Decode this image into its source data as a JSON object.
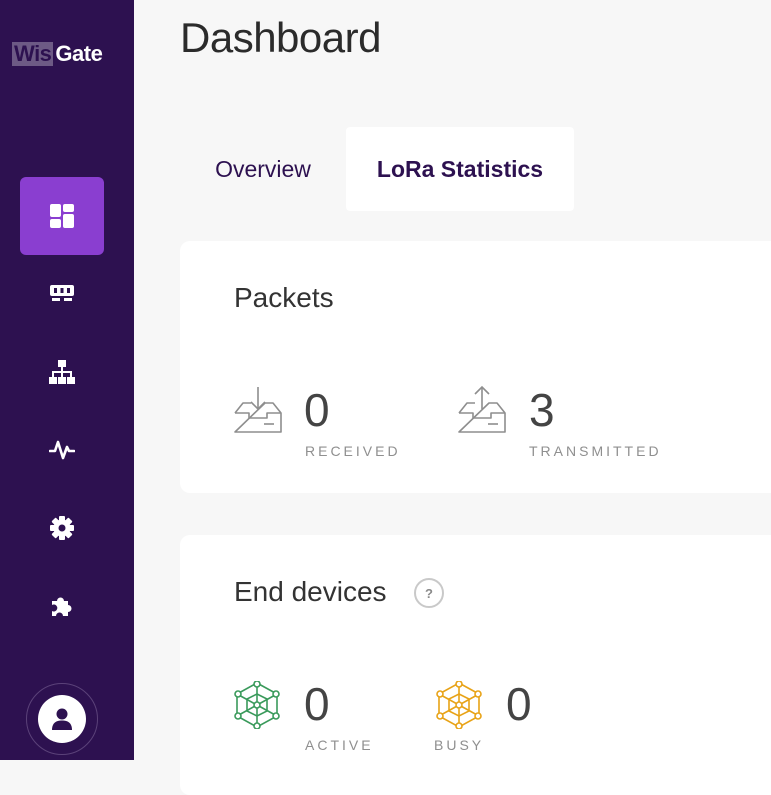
{
  "sidebar": {
    "logo": {
      "part1": "Wis",
      "part2": "Gate"
    },
    "items": [
      {
        "icon": "dashboard-icon",
        "active": true
      },
      {
        "icon": "gateway-icon",
        "active": false
      },
      {
        "icon": "network-icon",
        "active": false
      },
      {
        "icon": "activity-icon",
        "active": false
      },
      {
        "icon": "gear-icon",
        "active": false
      },
      {
        "icon": "puzzle-icon",
        "active": false
      }
    ],
    "user_icon": "user-icon"
  },
  "header": {
    "title": "Dashboard"
  },
  "tabs": [
    {
      "label": "Overview",
      "active": false
    },
    {
      "label": "LoRa Statistics",
      "active": true
    }
  ],
  "packets": {
    "title": "Packets",
    "received": {
      "value": "0",
      "label": "RECEIVED",
      "icon": "inbox-download-icon"
    },
    "transmitted": {
      "value": "3",
      "label": "TRANSMITTED",
      "icon": "inbox-upload-icon"
    }
  },
  "end_devices": {
    "title": "End devices",
    "help_glyph": "?",
    "active": {
      "value": "0",
      "label": "ACTIVE",
      "icon": "node-network-icon",
      "color": "#3a9a5b"
    },
    "busy": {
      "value": "0",
      "label": "BUSY",
      "icon": "node-network-icon",
      "color": "#e8a317"
    }
  },
  "colors": {
    "sidebar_bg": "#2d1150",
    "active_nav": "#8a3ed0",
    "background": "#f7f7f7"
  }
}
